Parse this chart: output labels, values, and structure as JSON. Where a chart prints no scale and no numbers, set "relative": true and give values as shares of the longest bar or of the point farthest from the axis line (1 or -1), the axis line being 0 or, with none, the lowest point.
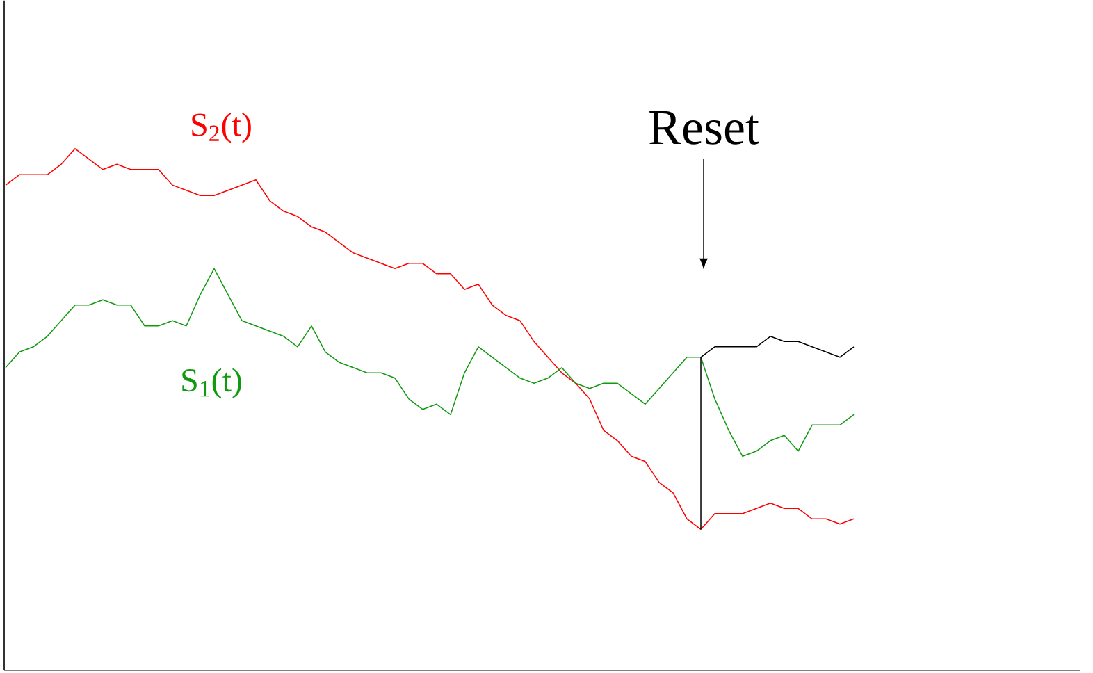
{
  "chart_data": {
    "type": "line",
    "relative": true,
    "annotations": [
      "Reset"
    ],
    "categories": [
      null,
      null,
      null,
      null,
      null,
      null,
      null,
      null,
      null,
      null,
      null,
      null,
      null,
      null,
      null,
      null,
      null,
      null,
      null,
      null,
      null,
      null,
      null,
      null,
      null,
      null,
      null,
      null,
      null,
      null,
      null,
      null,
      null,
      null,
      null,
      null,
      null,
      null,
      null,
      null,
      null,
      null,
      null,
      null,
      null,
      null,
      null,
      null,
      null,
      null,
      null,
      null,
      null,
      null,
      null,
      null,
      null,
      null,
      null,
      null,
      null,
      null,
      null,
      null,
      null,
      null,
      null,
      null,
      null,
      null,
      null,
      null,
      null,
      null,
      null,
      null,
      null,
      null
    ],
    "series": [
      {
        "name": "S$_{2}$(t)",
        "color": "#ff0000",
        "values": [
          0.93,
          0.95,
          0.95,
          0.95,
          0.97,
          1.0,
          0.98,
          0.96,
          0.97,
          0.96,
          0.96,
          0.96,
          0.93,
          0.92,
          0.91,
          0.91,
          0.92,
          0.93,
          0.94,
          0.9,
          0.88,
          0.87,
          0.85,
          0.84,
          0.82,
          0.8,
          0.79,
          0.78,
          0.77,
          0.78,
          0.78,
          0.76,
          0.76,
          0.73,
          0.74,
          0.7,
          0.68,
          0.67,
          0.63,
          0.6,
          0.57,
          0.55,
          0.52,
          0.46,
          0.44,
          0.41,
          0.4,
          0.36,
          0.34,
          0.29,
          0.27,
          0.3,
          0.3,
          0.3,
          0.31,
          0.32,
          0.31,
          0.31,
          0.29,
          0.29,
          0.28,
          0.29,
          null,
          null,
          null,
          null,
          null,
          null,
          null,
          null,
          null,
          null,
          null,
          null,
          null,
          null,
          null,
          null
        ]
      },
      {
        "name": "S$_{1}$(t)",
        "color": "#119911",
        "values": [
          0.58,
          0.61,
          0.62,
          0.64,
          0.67,
          0.7,
          0.7,
          0.71,
          0.7,
          0.7,
          0.66,
          0.66,
          0.67,
          0.66,
          0.72,
          0.77,
          0.72,
          0.67,
          0.66,
          0.65,
          0.64,
          0.62,
          0.66,
          0.61,
          0.59,
          0.58,
          0.57,
          0.57,
          0.56,
          0.52,
          0.5,
          0.51,
          0.49,
          0.57,
          0.62,
          0.6,
          0.58,
          0.56,
          0.55,
          0.56,
          0.58,
          0.55,
          0.54,
          0.55,
          0.55,
          0.53,
          0.51,
          0.54,
          0.57,
          0.6,
          0.6,
          0.52,
          0.46,
          0.41,
          0.42,
          0.44,
          0.45,
          0.42,
          0.47,
          0.47,
          0.47,
          0.49,
          null,
          null,
          null,
          null,
          null,
          null,
          null,
          null,
          null,
          null,
          null,
          null,
          null,
          null,
          null,
          null
        ]
      },
      {
        "color": "#000000",
        "values": [
          null,
          null,
          null,
          null,
          null,
          null,
          null,
          null,
          null,
          null,
          null,
          null,
          null,
          null,
          null,
          null,
          null,
          null,
          null,
          null,
          null,
          null,
          null,
          null,
          null,
          null,
          null,
          null,
          null,
          null,
          null,
          null,
          null,
          null,
          null,
          null,
          null,
          null,
          null,
          null,
          null,
          null,
          null,
          null,
          null,
          null,
          null,
          null,
          null,
          null,
          0.6,
          0.62,
          0.62,
          0.62,
          0.62,
          0.64,
          0.63,
          0.63,
          0.62,
          0.61,
          0.6,
          0.62,
          null,
          null,
          null,
          null,
          null,
          null,
          null,
          null,
          null,
          null,
          null,
          null,
          null,
          null,
          null,
          null
        ]
      }
    ]
  }
}
